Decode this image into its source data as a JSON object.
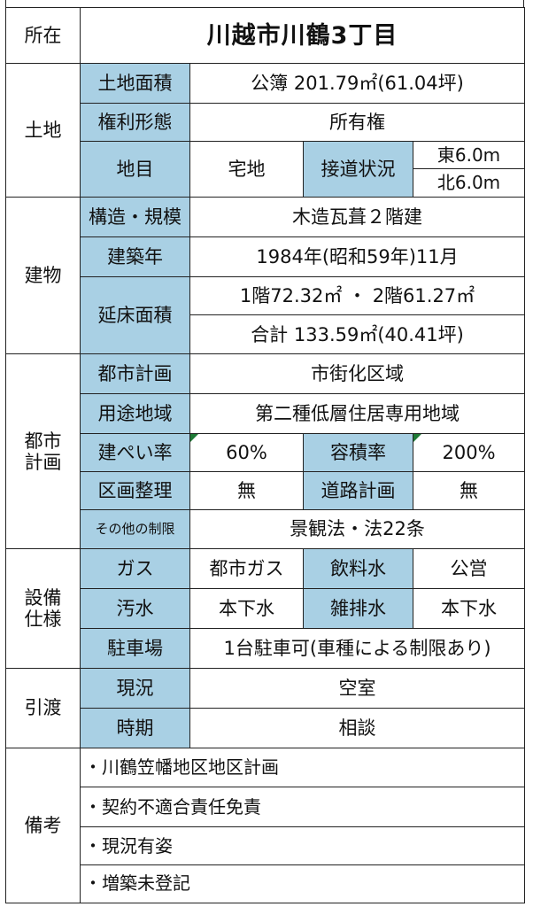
{
  "location": {
    "label": "所在",
    "value": "川越市川鶴3丁目"
  },
  "land": {
    "section": "土地",
    "area": {
      "label": "土地面積",
      "value": "公簿 201.79㎡(61.04坪)"
    },
    "rights": {
      "label": "権利形態",
      "value": "所有権"
    },
    "category": {
      "label": "地目",
      "value": "宅地"
    },
    "road": {
      "label": "接道状況",
      "east": "東6.0m",
      "north": "北6.0m"
    }
  },
  "building": {
    "section": "建物",
    "structure": {
      "label": "構造・規模",
      "value": "木造瓦葺２階建"
    },
    "built": {
      "label": "建築年",
      "value": "1984年(昭和59年)11月"
    },
    "floor_area": {
      "label": "延床面積",
      "floors": "1階72.32㎡ ・ 2階61.27㎡",
      "total": "合計 133.59㎡(40.41坪)"
    }
  },
  "urban": {
    "section_line1": "都市",
    "section_line2": "計画",
    "plan": {
      "label": "都市計画",
      "value": "市街化区域"
    },
    "zoning": {
      "label": "用途地域",
      "value": "第二種低層住居専用地域"
    },
    "coverage": {
      "label": "建ぺい率",
      "value": "60%"
    },
    "far": {
      "label": "容積率",
      "value": "200%"
    },
    "readjust": {
      "label": "区画整理",
      "value": "無"
    },
    "road_plan": {
      "label": "道路計画",
      "value": "無"
    },
    "other": {
      "label": "その他の制限",
      "value": "景観法・法22条"
    }
  },
  "facilities": {
    "section_line1": "設備",
    "section_line2": "仕様",
    "gas": {
      "label": "ガス",
      "value": "都市ガス"
    },
    "water": {
      "label": "飲料水",
      "value": "公営"
    },
    "sewage": {
      "label": "汚水",
      "value": "本下水"
    },
    "drain": {
      "label": "雑排水",
      "value": "本下水"
    },
    "parking": {
      "label": "駐車場",
      "value": "1台駐車可(車種による制限あり)"
    }
  },
  "handover": {
    "section": "引渡",
    "status": {
      "label": "現況",
      "value": "空室"
    },
    "timing": {
      "label": "時期",
      "value": "相談"
    }
  },
  "remarks": {
    "section": "備考",
    "items": [
      "・川鶴笠幡地区地区計画",
      "・契約不適合責任免責",
      "・現況有姿",
      "・増築未登記"
    ]
  },
  "colors": {
    "label_bg": "#a9d0e4",
    "border": "#222222",
    "marker": "#1e7a36"
  }
}
